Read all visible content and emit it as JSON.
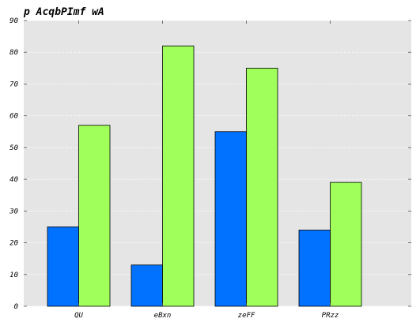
{
  "chart_data": {
    "type": "bar",
    "title": "p AcqbPImf wA",
    "xlabel": "",
    "ylabel": "",
    "categories": [
      "QU",
      "eBxn",
      "zeFF",
      "PRzz"
    ],
    "series": [
      {
        "color": "#0072ff",
        "values": [
          25,
          13,
          55,
          24
        ]
      },
      {
        "color": "#a0ff5a",
        "values": [
          57,
          82,
          75,
          39
        ]
      }
    ],
    "ylim": [
      0,
      90
    ],
    "yticks": [
      0,
      10,
      20,
      30,
      40,
      50,
      60,
      70,
      80,
      90
    ],
    "grid": true,
    "legend": "none"
  }
}
